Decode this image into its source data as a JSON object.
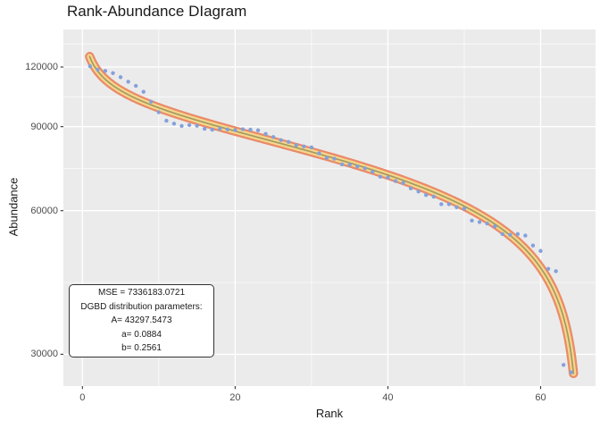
{
  "chart": {
    "title": "Rank-Abundance DIagram",
    "x_axis_title": "Rank",
    "y_axis_title": "Abundance"
  },
  "annotation": {
    "lines": [
      "MSE = 7336183.0721",
      "DGBD distribution parameters:",
      "A= 43297.5473",
      "a= 0.0884",
      "b= 0.2561"
    ]
  },
  "chart_data": {
    "type": "scatter",
    "title": "Rank-Abundance DIagram",
    "xlabel": "Rank",
    "ylabel": "Abundance",
    "y_scale": "log10",
    "x_ticks": [
      0,
      20,
      40,
      60
    ],
    "x_minor_gridlines": [
      10,
      30,
      50
    ],
    "y_ticks": [
      30000,
      60000,
      90000,
      120000
    ],
    "y_minor_gridlines": [
      42426,
      73485,
      103923,
      134164
    ],
    "xlim": [
      -2.49,
      67.19
    ],
    "ylim_log10": [
      4.41041,
      5.15786
    ],
    "legend": "none",
    "grid": "on",
    "fit": {
      "model": "DGBD",
      "MSE": 7336183.0721,
      "A": 43297.5473,
      "a": 0.0884,
      "b": 0.2561,
      "max_rank": 64,
      "curve_draw_range": [
        0.95,
        64.3
      ]
    },
    "points": [
      [
        1,
        120500
      ],
      [
        2,
        118500
      ],
      [
        3,
        117800
      ],
      [
        4,
        116500
      ],
      [
        5,
        114300
      ],
      [
        6,
        111800
      ],
      [
        7,
        109600
      ],
      [
        8,
        106500
      ],
      [
        9,
        101500
      ],
      [
        10,
        96500
      ],
      [
        11,
        92600
      ],
      [
        12,
        91300
      ],
      [
        13,
        90300
      ],
      [
        14,
        90700
      ],
      [
        15,
        90400
      ],
      [
        16,
        89100
      ],
      [
        17,
        88700
      ],
      [
        18,
        89100
      ],
      [
        19,
        88800
      ],
      [
        20,
        88500
      ],
      [
        21,
        88900
      ],
      [
        22,
        88700
      ],
      [
        23,
        88400
      ],
      [
        24,
        86900
      ],
      [
        25,
        85600
      ],
      [
        26,
        84300
      ],
      [
        27,
        83600
      ],
      [
        28,
        82300
      ],
      [
        29,
        81800
      ],
      [
        30,
        81400
      ],
      [
        31,
        79100
      ],
      [
        32,
        77400
      ],
      [
        33,
        77100
      ],
      [
        34,
        75000
      ],
      [
        35,
        74900
      ],
      [
        36,
        74300
      ],
      [
        37,
        73600
      ],
      [
        38,
        72400
      ],
      [
        39,
        70700
      ],
      [
        40,
        70400
      ],
      [
        41,
        69200
      ],
      [
        42,
        68600
      ],
      [
        43,
        66800
      ],
      [
        44,
        65800
      ],
      [
        45,
        64700
      ],
      [
        46,
        64200
      ],
      [
        47,
        61900
      ],
      [
        48,
        61900
      ],
      [
        49,
        61000
      ],
      [
        50,
        60600
      ],
      [
        51,
        57200
      ],
      [
        52,
        56800
      ],
      [
        53,
        56400
      ],
      [
        54,
        55600
      ],
      [
        55,
        53600
      ],
      [
        56,
        53400
      ],
      [
        57,
        53600
      ],
      [
        58,
        53200
      ],
      [
        59,
        50700
      ],
      [
        60,
        49400
      ],
      [
        61,
        45300
      ],
      [
        62,
        44800
      ],
      [
        63,
        28500
      ],
      [
        64,
        27500
      ]
    ],
    "style": {
      "panel_bg": "#EBEBEB",
      "grid_major": "#FFFFFF",
      "grid_minor": "#FFFFFF",
      "band_outer_color": "#EA8A69",
      "band_inner_color": "#F5D78C",
      "fit_line_color": "#A49A62",
      "point_color": "#84A1DC",
      "tick_color": "#333333",
      "tick_label_color": "#4D4D4D",
      "text_color": "#1A1A1A"
    }
  }
}
